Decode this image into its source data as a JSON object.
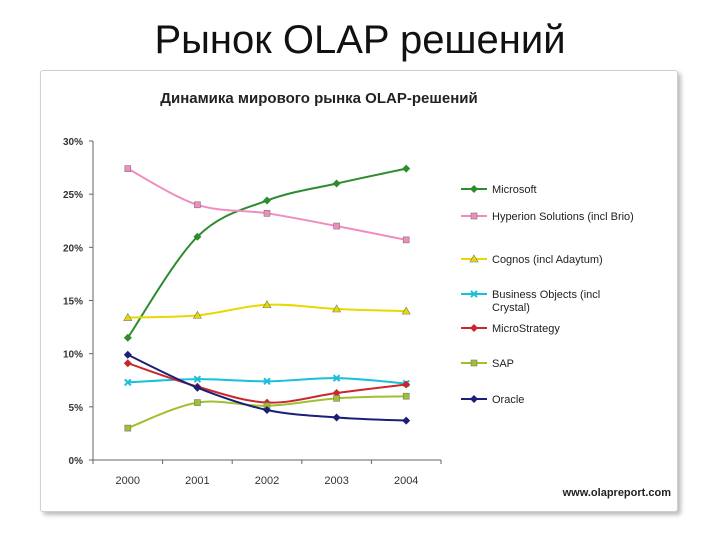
{
  "slide": {
    "title": "Рынок OLAP решений"
  },
  "chart_data": {
    "type": "line",
    "title": "Динамика мирового рынка OLAP-решений",
    "source": "www.olapreport.com",
    "xlabel": "",
    "ylabel": "",
    "x": [
      "2000",
      "2001",
      "2002",
      "2003",
      "2004"
    ],
    "ylim": [
      0,
      30
    ],
    "yticks": [
      "0%",
      "5%",
      "10%",
      "15%",
      "20%",
      "25%",
      "30%"
    ],
    "legend_position": "right",
    "grid": false,
    "series": [
      {
        "name": "Microsoft",
        "color": "#2e8b2e",
        "marker": "diamond",
        "values": [
          11.5,
          21.0,
          24.4,
          26.0,
          27.4
        ]
      },
      {
        "name": "Hyperion Solutions (incl Brio)",
        "color": "#f08cc0",
        "marker": "square",
        "values": [
          27.4,
          24.0,
          23.2,
          22.0,
          20.7
        ]
      },
      {
        "name": "Cognos (incl Adaytum)",
        "color": "#e8d800",
        "marker": "triangle",
        "values": [
          13.4,
          13.6,
          14.6,
          14.2,
          14.0
        ]
      },
      {
        "name": "Business Objects (incl Crystal)",
        "color": "#19c0d8",
        "marker": "x",
        "values": [
          7.3,
          7.6,
          7.4,
          7.7,
          7.2
        ]
      },
      {
        "name": "MicroStrategy",
        "color": "#c8282d",
        "marker": "diamond",
        "values": [
          9.1,
          6.9,
          5.4,
          6.3,
          7.1
        ]
      },
      {
        "name": "SAP",
        "color": "#a0c030",
        "marker": "square",
        "values": [
          3.0,
          5.4,
          5.1,
          5.8,
          6.0
        ]
      },
      {
        "name": "Oracle",
        "color": "#1a1f78",
        "marker": "diamond",
        "values": [
          9.9,
          6.8,
          4.7,
          4.0,
          3.7
        ]
      }
    ]
  }
}
